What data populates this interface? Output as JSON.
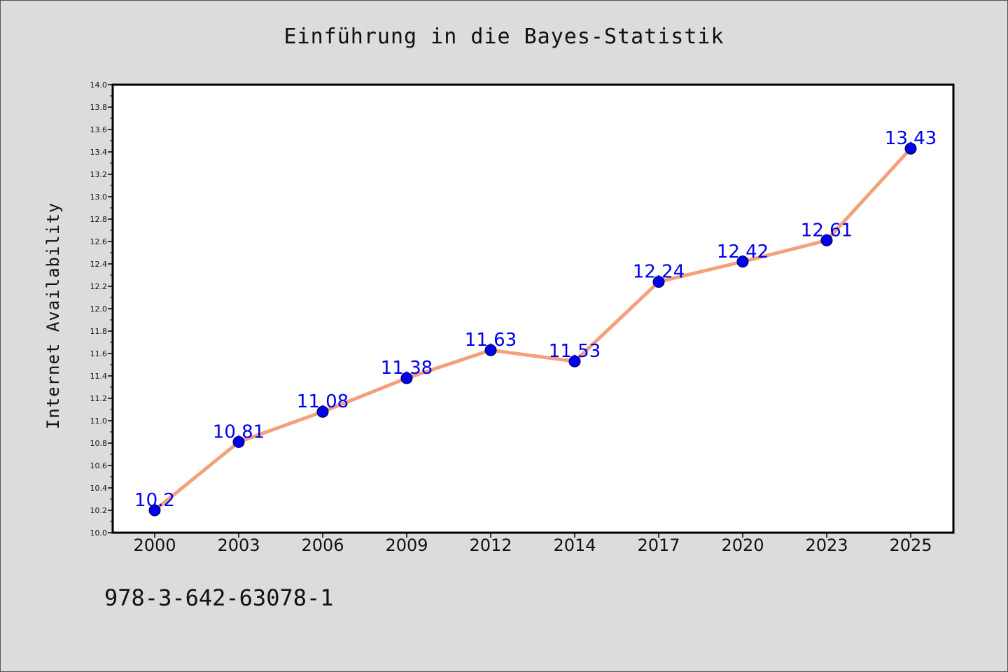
{
  "header": {
    "title": "Einführung in die Bayes-Statistik"
  },
  "footer": {
    "isbn": "978-3-642-63078-1"
  },
  "colors": {
    "line": "#f4a07c",
    "marker": "#0000ee",
    "data_label": "#0000ee",
    "plot_bg": "#ffffff",
    "page_bg": "#dcdcdc"
  },
  "chart_data": {
    "type": "line",
    "title": "Einführung in die Bayes-Statistik",
    "xlabel": "",
    "ylabel": "Internet Availability",
    "categories": [
      "2000",
      "2003",
      "2006",
      "2009",
      "2012",
      "2014",
      "2017",
      "2020",
      "2023",
      "2025"
    ],
    "series": [
      {
        "values": [
          10.2,
          10.81,
          11.08,
          11.38,
          11.63,
          11.53,
          12.24,
          12.42,
          12.61,
          13.43
        ],
        "labels": [
          "10.2",
          "10.81",
          "11.08",
          "11.38",
          "11.63",
          "11.53",
          "12.24",
          "12.42",
          "12.61",
          "13.43"
        ]
      }
    ],
    "ylim": [
      10.0,
      14.0
    ],
    "yticks": [
      "10.0",
      "10.2",
      "10.4",
      "10.6",
      "10.8",
      "11.0",
      "11.2",
      "11.4",
      "11.6",
      "11.8",
      "12.0",
      "12.2",
      "12.4",
      "12.6",
      "12.8",
      "13.0",
      "13.2",
      "13.4",
      "13.6",
      "13.8",
      "14.0"
    ],
    "grid": false,
    "legend": "none"
  }
}
